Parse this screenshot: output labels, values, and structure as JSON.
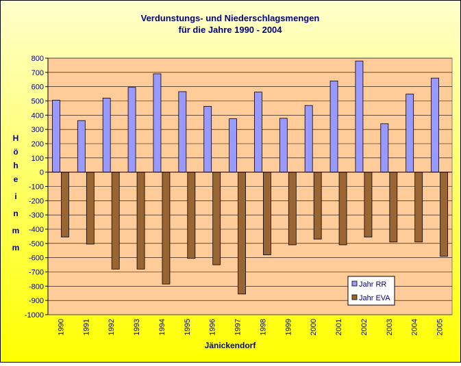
{
  "chart_data": {
    "type": "bar",
    "title_line1": "Verdunstungs- und Niederschlagsmengen",
    "title_line2": "für die Jahre  1990 - 2004",
    "xlabel": "Jänickendorf",
    "ylabel_chars": [
      "H",
      "ö",
      "h",
      "e",
      "i",
      "n",
      "m",
      "m"
    ],
    "ylim": [
      -1000,
      800
    ],
    "ytick_step": 100,
    "categories": [
      "1990",
      "1991",
      "1992",
      "1993",
      "1994",
      "1995",
      "1996",
      "1997",
      "1998",
      "1999",
      "2000",
      "2001",
      "2002",
      "2003",
      "2004",
      "2005"
    ],
    "series": [
      {
        "name": "Jahr RR",
        "color": "#9999ff",
        "values": [
          505,
          362,
          520,
          595,
          690,
          565,
          462,
          375,
          562,
          378,
          468,
          640,
          780,
          340,
          548,
          660
        ]
      },
      {
        "name": "Jahr EVA",
        "color": "#996633",
        "values": [
          -455,
          -505,
          -680,
          -680,
          -785,
          -605,
          -650,
          -855,
          -580,
          -510,
          -470,
          -510,
          -455,
          -490,
          -490,
          -590
        ]
      }
    ],
    "grid": true,
    "legend_position": "bottom-right"
  },
  "colors": {
    "background_top": "#ffffcc",
    "background_bottom": "#ffff00",
    "plot_area": "#ffcc99",
    "text": "#000080"
  }
}
